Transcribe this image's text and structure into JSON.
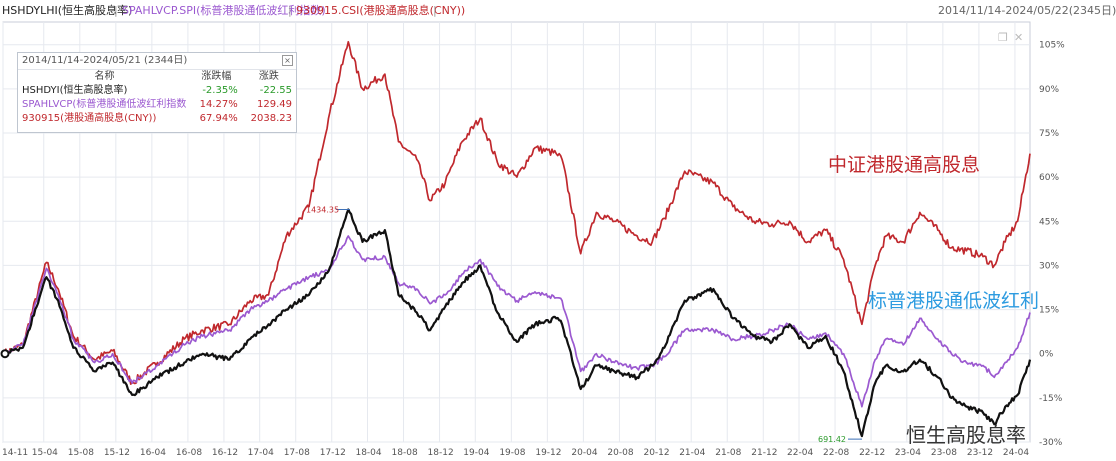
{
  "header": {
    "series_labels": [
      {
        "text": "HSHDYLHI(恒生高股息率)",
        "color": "#222222"
      },
      {
        "text": "SPAHLVCP.SPI(标普港股通低波红利指数)",
        "color": "#9b59d0"
      },
      {
        "text": "930915.CSI(港股通高股息(CNY))",
        "color": "#c0282d"
      }
    ],
    "separator": "|",
    "date_range": "2014/11/14-2024/05/22(2345日)"
  },
  "legend_table": {
    "title": "2014/11/14-2024/05/21 (2344日)",
    "close_glyph": "×",
    "columns": [
      "名称",
      "涨跌幅",
      "涨跌"
    ],
    "rows": [
      {
        "name": "HSHDYI(恒生高股息率)",
        "pct": "-2.35%",
        "chg": "-22.55",
        "name_color": "#222222",
        "val_color": "#2a9a2a"
      },
      {
        "name": "SPAHLVCP(标普港股通低波红利指数",
        "pct": "14.27%",
        "chg": "129.49",
        "name_color": "#9b59d0",
        "val_color": "#c0282d"
      },
      {
        "name": "930915(港股通高股息(CNY))",
        "pct": "67.94%",
        "chg": "2038.23",
        "name_color": "#c0282d",
        "val_color": "#c0282d"
      }
    ]
  },
  "window_icons": [
    "restore-icon",
    "close-icon"
  ],
  "window_glyphs": {
    "restore": "❐",
    "close": "✕"
  },
  "annotations": {
    "red_label": "中证港股通高股息",
    "blue_label": "标普港股通低波红利",
    "black_label": "恒生高股息率",
    "max_marker": "1434.35",
    "min_marker": "691.42"
  },
  "colors": {
    "red": "#c0282d",
    "purple": "#9b59d0",
    "black": "#111111",
    "blue_label": "#2d9be0",
    "grid": "#e6e9ef",
    "axis_text": "#555555"
  },
  "chart_data": {
    "type": "line",
    "x_tick_labels": [
      "14-11",
      "15-04",
      "15-08",
      "15-12",
      "16-04",
      "16-08",
      "16-12",
      "17-04",
      "17-08",
      "17-12",
      "18-04",
      "18-08",
      "18-12",
      "19-04",
      "19-08",
      "19-12",
      "20-04",
      "20-08",
      "20-12",
      "21-04",
      "21-08",
      "21-12",
      "22-04",
      "22-08",
      "22-12",
      "23-04",
      "23-08",
      "23-12",
      "24-04"
    ],
    "y_tick_labels": [
      "-30%",
      "-15%",
      "0%",
      "15%",
      "30%",
      "45%",
      "60%",
      "75%",
      "90%",
      "105%"
    ],
    "ylim": [
      -30,
      110
    ],
    "x_range": [
      "2014-11-14",
      "2024-05-22"
    ],
    "grid": true,
    "series": [
      {
        "name": "930915.CSI(港股通高股息(CNY))",
        "color": "#c0282d",
        "points": [
          [
            "2014-11-14",
            0
          ],
          [
            "2015-01-20",
            3
          ],
          [
            "2015-04-10",
            31
          ],
          [
            "2015-05-20",
            22
          ],
          [
            "2015-07-10",
            6
          ],
          [
            "2015-09-20",
            -2
          ],
          [
            "2015-11-20",
            1
          ],
          [
            "2016-01-25",
            -10
          ],
          [
            "2016-04-20",
            -3
          ],
          [
            "2016-07-20",
            5
          ],
          [
            "2016-09-20",
            8
          ],
          [
            "2016-12-20",
            10
          ],
          [
            "2017-02-28",
            18
          ],
          [
            "2017-05-01",
            20
          ],
          [
            "2017-06-30",
            40
          ],
          [
            "2017-09-15",
            50
          ],
          [
            "2017-11-20",
            80
          ],
          [
            "2018-01-26",
            106
          ],
          [
            "2018-03-15",
            90
          ],
          [
            "2018-05-30",
            95
          ],
          [
            "2018-07-15",
            72
          ],
          [
            "2018-09-15",
            66
          ],
          [
            "2018-10-30",
            52
          ],
          [
            "2018-12-20",
            58
          ],
          [
            "2019-02-15",
            72
          ],
          [
            "2019-04-18",
            80
          ],
          [
            "2019-06-15",
            65
          ],
          [
            "2019-08-20",
            60
          ],
          [
            "2019-10-20",
            70
          ],
          [
            "2019-12-31",
            68
          ],
          [
            "2020-01-20",
            66
          ],
          [
            "2020-03-23",
            34
          ],
          [
            "2020-05-15",
            48
          ],
          [
            "2020-07-15",
            45
          ],
          [
            "2020-09-30",
            40
          ],
          [
            "2020-11-20",
            38
          ],
          [
            "2020-12-31",
            46
          ],
          [
            "2021-03-10",
            62
          ],
          [
            "2021-06-15",
            58
          ],
          [
            "2021-08-20",
            50
          ],
          [
            "2021-10-30",
            45
          ],
          [
            "2021-12-31",
            44
          ],
          [
            "2022-02-28",
            45
          ],
          [
            "2022-04-30",
            38
          ],
          [
            "2022-06-30",
            42
          ],
          [
            "2022-08-30",
            32
          ],
          [
            "2022-10-31",
            10
          ],
          [
            "2022-12-15",
            30
          ],
          [
            "2023-01-20",
            40
          ],
          [
            "2023-03-20",
            38
          ],
          [
            "2023-05-15",
            48
          ],
          [
            "2023-07-15",
            42
          ],
          [
            "2023-08-30",
            36
          ],
          [
            "2023-10-20",
            35
          ],
          [
            "2023-12-15",
            33
          ],
          [
            "2024-01-22",
            30
          ],
          [
            "2024-02-28",
            38
          ],
          [
            "2024-04-10",
            45
          ],
          [
            "2024-05-22",
            68
          ]
        ]
      },
      {
        "name": "SPAHLVCP.SPI(标普港股通低波红利指数)",
        "color": "#9b59d0",
        "points": [
          [
            "2014-11-14",
            0
          ],
          [
            "2015-01-20",
            3
          ],
          [
            "2015-04-10",
            29
          ],
          [
            "2015-05-20",
            20
          ],
          [
            "2015-07-10",
            5
          ],
          [
            "2015-09-20",
            -3
          ],
          [
            "2015-11-20",
            0
          ],
          [
            "2016-01-25",
            -10
          ],
          [
            "2016-04-20",
            -4
          ],
          [
            "2016-07-20",
            3
          ],
          [
            "2016-09-20",
            6
          ],
          [
            "2016-12-20",
            8
          ],
          [
            "2017-02-28",
            15
          ],
          [
            "2017-05-01",
            18
          ],
          [
            "2017-06-30",
            22
          ],
          [
            "2017-09-15",
            26
          ],
          [
            "2017-11-20",
            28
          ],
          [
            "2018-01-26",
            40
          ],
          [
            "2018-03-15",
            32
          ],
          [
            "2018-05-30",
            33
          ],
          [
            "2018-07-15",
            24
          ],
          [
            "2018-09-15",
            22
          ],
          [
            "2018-10-30",
            17
          ],
          [
            "2018-12-20",
            20
          ],
          [
            "2019-02-15",
            27
          ],
          [
            "2019-04-18",
            32
          ],
          [
            "2019-06-15",
            23
          ],
          [
            "2019-08-20",
            18
          ],
          [
            "2019-10-20",
            21
          ],
          [
            "2019-12-31",
            19
          ],
          [
            "2020-01-20",
            18
          ],
          [
            "2020-03-23",
            -6
          ],
          [
            "2020-05-15",
            0
          ],
          [
            "2020-07-15",
            -3
          ],
          [
            "2020-09-30",
            -5
          ],
          [
            "2020-11-20",
            -4
          ],
          [
            "2020-12-31",
            -1
          ],
          [
            "2021-03-10",
            8
          ],
          [
            "2021-06-15",
            8
          ],
          [
            "2021-08-20",
            5
          ],
          [
            "2021-10-30",
            6
          ],
          [
            "2021-12-31",
            8
          ],
          [
            "2022-02-28",
            10
          ],
          [
            "2022-04-30",
            5
          ],
          [
            "2022-06-30",
            7
          ],
          [
            "2022-08-30",
            0
          ],
          [
            "2022-10-31",
            -18
          ],
          [
            "2022-12-15",
            -2
          ],
          [
            "2023-01-20",
            5
          ],
          [
            "2023-03-20",
            3
          ],
          [
            "2023-05-15",
            12
          ],
          [
            "2023-07-15",
            5
          ],
          [
            "2023-08-30",
            0
          ],
          [
            "2023-10-20",
            -3
          ],
          [
            "2023-12-15",
            -4
          ],
          [
            "2024-01-22",
            -8
          ],
          [
            "2024-02-28",
            -3
          ],
          [
            "2024-04-10",
            2
          ],
          [
            "2024-05-22",
            14
          ]
        ]
      },
      {
        "name": "HSHDYLHI(恒生高股息率)",
        "color": "#111111",
        "points": [
          [
            "2014-11-14",
            0
          ],
          [
            "2015-01-20",
            2
          ],
          [
            "2015-04-10",
            26
          ],
          [
            "2015-05-20",
            18
          ],
          [
            "2015-07-10",
            2
          ],
          [
            "2015-09-20",
            -6
          ],
          [
            "2015-11-20",
            -3
          ],
          [
            "2016-01-25",
            -14
          ],
          [
            "2016-04-20",
            -8
          ],
          [
            "2016-07-20",
            -3
          ],
          [
            "2016-09-20",
            0
          ],
          [
            "2016-12-20",
            -2
          ],
          [
            "2017-02-28",
            5
          ],
          [
            "2017-05-01",
            10
          ],
          [
            "2017-06-30",
            15
          ],
          [
            "2017-09-15",
            20
          ],
          [
            "2017-11-20",
            28
          ],
          [
            "2018-01-26",
            49
          ],
          [
            "2018-03-15",
            38
          ],
          [
            "2018-05-30",
            42
          ],
          [
            "2018-07-15",
            20
          ],
          [
            "2018-09-15",
            14
          ],
          [
            "2018-10-30",
            8
          ],
          [
            "2018-12-20",
            16
          ],
          [
            "2019-02-15",
            24
          ],
          [
            "2019-04-18",
            30
          ],
          [
            "2019-06-15",
            14
          ],
          [
            "2019-08-20",
            4
          ],
          [
            "2019-10-20",
            10
          ],
          [
            "2019-12-31",
            12
          ],
          [
            "2020-01-20",
            10
          ],
          [
            "2020-03-23",
            -12
          ],
          [
            "2020-05-15",
            -4
          ],
          [
            "2020-07-15",
            -6
          ],
          [
            "2020-09-30",
            -8
          ],
          [
            "2020-11-20",
            -4
          ],
          [
            "2020-12-31",
            2
          ],
          [
            "2021-03-10",
            18
          ],
          [
            "2021-06-15",
            22
          ],
          [
            "2021-08-20",
            12
          ],
          [
            "2021-10-30",
            6
          ],
          [
            "2021-12-31",
            4
          ],
          [
            "2022-02-28",
            10
          ],
          [
            "2022-04-30",
            2
          ],
          [
            "2022-06-30",
            6
          ],
          [
            "2022-08-30",
            -6
          ],
          [
            "2022-10-31",
            -28
          ],
          [
            "2022-12-15",
            -10
          ],
          [
            "2023-01-20",
            -4
          ],
          [
            "2023-03-20",
            -6
          ],
          [
            "2023-05-15",
            -2
          ],
          [
            "2023-07-15",
            -8
          ],
          [
            "2023-08-30",
            -15
          ],
          [
            "2023-10-20",
            -18
          ],
          [
            "2023-12-15",
            -20
          ],
          [
            "2024-01-22",
            -24
          ],
          [
            "2024-02-28",
            -18
          ],
          [
            "2024-04-10",
            -14
          ],
          [
            "2024-05-22",
            -2
          ]
        ]
      }
    ]
  }
}
